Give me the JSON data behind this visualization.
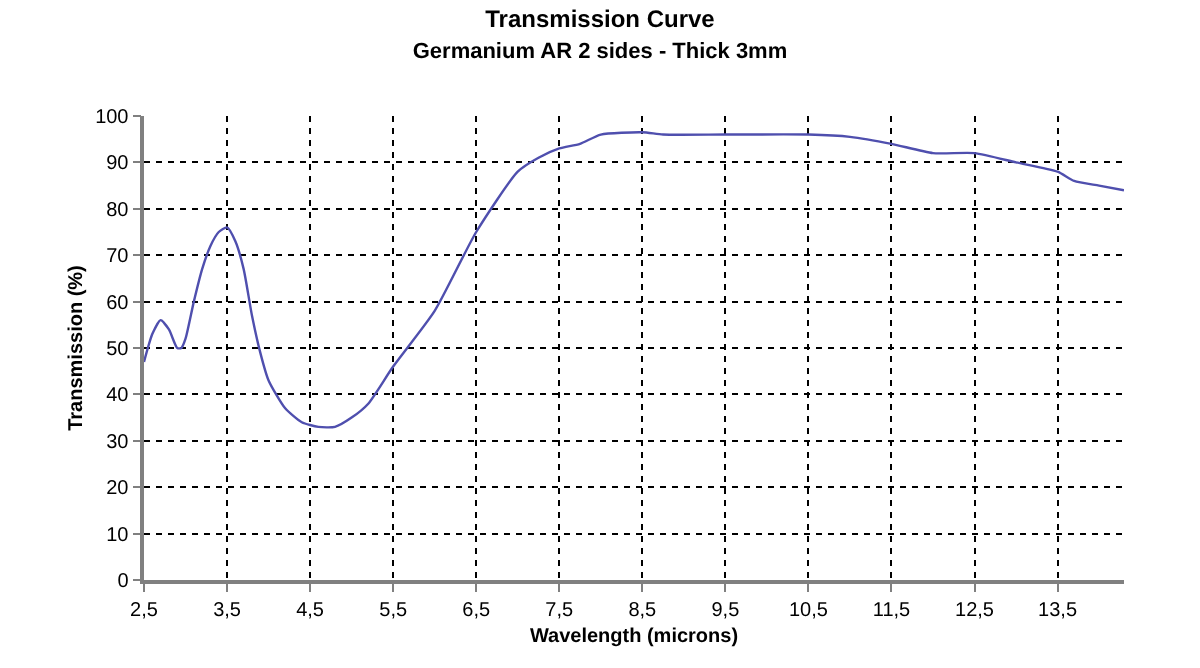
{
  "chart_data": {
    "type": "line",
    "title": "Transmission Curve",
    "subtitle": "Germanium AR 2 sides - Thick 3mm",
    "xlabel": "Wavelength (microns)",
    "ylabel": "Transmission (%)",
    "x": [
      2.5,
      2.6,
      2.7,
      2.8,
      2.9,
      2.95,
      3.0,
      3.1,
      3.2,
      3.3,
      3.4,
      3.5,
      3.6,
      3.7,
      3.8,
      3.9,
      4.0,
      4.2,
      4.4,
      4.6,
      4.8,
      5.0,
      5.2,
      5.5,
      6.0,
      6.5,
      7.0,
      7.25,
      7.5,
      7.75,
      8.0,
      8.5,
      8.75,
      9.5,
      10.5,
      11.0,
      11.5,
      12.0,
      12.5,
      13.0,
      13.5,
      13.7,
      14.0,
      14.3
    ],
    "series": [
      {
        "color": "#4f4fae",
        "values": [
          47,
          53,
          56,
          54,
          50,
          50,
          52,
          60,
          67,
          72,
          75,
          76,
          73,
          67,
          57,
          49,
          43,
          37,
          34,
          33,
          33,
          35,
          38,
          46,
          58,
          75,
          88,
          91,
          93,
          94,
          96,
          96.5,
          96,
          96,
          96,
          95.5,
          94,
          92,
          92,
          90,
          88,
          86,
          85,
          84
        ]
      }
    ],
    "xlim": [
      2.5,
      14.3
    ],
    "xticks": [
      {
        "value": 2.5,
        "label": "2,5"
      },
      {
        "value": 3.5,
        "label": "3,5"
      },
      {
        "value": 4.5,
        "label": "4,5"
      },
      {
        "value": 5.5,
        "label": "5,5"
      },
      {
        "value": 6.5,
        "label": "6,5"
      },
      {
        "value": 7.5,
        "label": "7,5"
      },
      {
        "value": 8.5,
        "label": "8,5"
      },
      {
        "value": 9.5,
        "label": "9,5"
      },
      {
        "value": 10.5,
        "label": "10,5"
      },
      {
        "value": 11.5,
        "label": "11,5"
      },
      {
        "value": 12.5,
        "label": "12,5"
      },
      {
        "value": 13.5,
        "label": "13,5"
      }
    ],
    "ylim": [
      0,
      100
    ],
    "yticks": [
      0,
      10,
      20,
      30,
      40,
      50,
      60,
      70,
      80,
      90,
      100
    ],
    "grid": true,
    "marker": "none",
    "line_style": "solid"
  }
}
